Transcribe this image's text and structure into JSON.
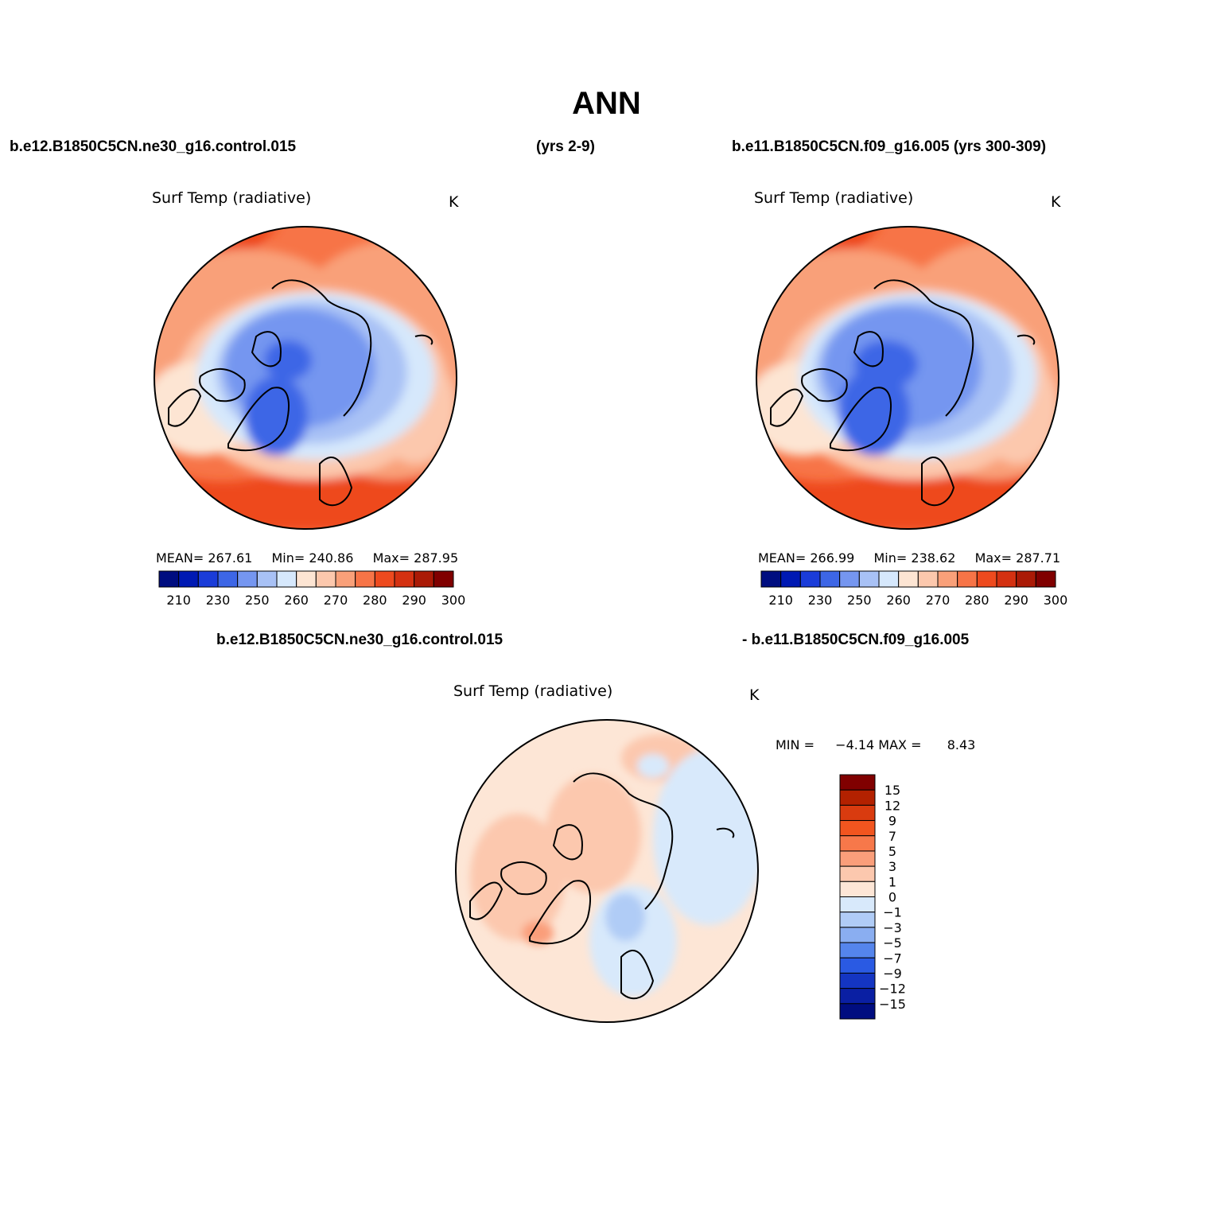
{
  "title": "ANN",
  "top_left_header": "b.e12.B1850C5CN.ne30_g16.control.015",
  "top_middle_header": "(yrs 2-9)",
  "top_right_header": "b.e11.B1850C5CN.f09_g16.005 (yrs 300-309)",
  "bottom_left_header": "b.e12.B1850C5CN.ne30_g16.control.015",
  "bottom_right_header": "- b.e11.B1850C5CN.f09_g16.005",
  "panels": [
    {
      "id": "left",
      "title": "Surf Temp (radiative)",
      "units": "K",
      "mean_label": "MEAN=",
      "mean": "267.61",
      "min_label": "Min=",
      "min": "240.86",
      "max_label": "Max=",
      "max": "287.95"
    },
    {
      "id": "right",
      "title": "Surf Temp (radiative)",
      "units": "K",
      "mean_label": "MEAN=",
      "mean": "266.99",
      "min_label": "Min=",
      "min": "238.62",
      "max_label": "Max=",
      "max": "287.71"
    },
    {
      "id": "diff",
      "title": "Surf Temp (radiative)",
      "units": "K",
      "min_label": "MIN =",
      "min": "−4.14",
      "max_label": "MAX =",
      "max": "8.43"
    }
  ],
  "abs_colorbar": {
    "tick_labels": [
      "210",
      "230",
      "250",
      "270",
      "290",
      "300"
    ],
    "tick_labels_full": [
      "210",
      "230",
      "250",
      "260",
      "270",
      "280",
      "290",
      "300"
    ],
    "colors": [
      "#000d80",
      "#0019b3",
      "#1a3cd9",
      "#3d66e6",
      "#7596f0",
      "#a8c1f5",
      "#d6e8fc",
      "#fde5d3",
      "#fcc8ad",
      "#f9a079",
      "#f77447",
      "#ee4a1e",
      "#d43111",
      "#aa1a06",
      "#800000"
    ]
  },
  "diff_colorbar": {
    "tick_labels": [
      "15",
      "12",
      "9",
      "7",
      "5",
      "3",
      "1",
      "0",
      "−1",
      "−3",
      "−5",
      "−7",
      "−9",
      "−12",
      "−15"
    ],
    "colors": [
      "#800000",
      "#b32100",
      "#d93b0f",
      "#f2551f",
      "#f7784a",
      "#fa9e7a",
      "#fcc8ae",
      "#fde6d6",
      "#d8e9fb",
      "#b0ccf6",
      "#8aaef1",
      "#5585ec",
      "#2a5ae3",
      "#1435c2",
      "#0a1fa3",
      "#000d80"
    ]
  }
}
